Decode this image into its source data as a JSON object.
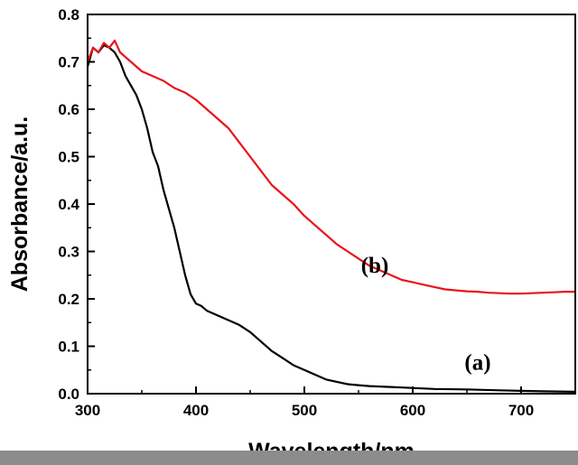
{
  "chart_data": {
    "type": "line",
    "xlabel": "Wavelength/nm",
    "ylabel": "Absorbance/a.u.",
    "xlim": [
      300,
      750
    ],
    "ylim": [
      0,
      0.8
    ],
    "xticks": [
      300,
      400,
      500,
      600,
      700
    ],
    "yticks": [
      0.0,
      0.1,
      0.2,
      0.3,
      0.4,
      0.5,
      0.6,
      0.7,
      0.8
    ],
    "xtick_labels": [
      "300",
      "400",
      "500",
      "600",
      "700"
    ],
    "ytick_labels": [
      "0.0",
      "0.1",
      "0.2",
      "0.3",
      "0.4",
      "0.5",
      "0.6",
      "0.7",
      "0.8"
    ],
    "grid": false,
    "annotations": [
      "(a)",
      "(b)"
    ],
    "series": [
      {
        "label": "(a)",
        "color": "#000000",
        "x": [
          300,
          305,
          310,
          315,
          320,
          325,
          330,
          335,
          340,
          345,
          350,
          355,
          360,
          365,
          370,
          375,
          380,
          385,
          390,
          395,
          400,
          405,
          410,
          420,
          430,
          440,
          450,
          460,
          470,
          480,
          490,
          500,
          510,
          520,
          530,
          540,
          550,
          560,
          580,
          600,
          620,
          650,
          680,
          700,
          720,
          750
        ],
        "y": [
          0.69,
          0.73,
          0.72,
          0.735,
          0.73,
          0.72,
          0.7,
          0.67,
          0.65,
          0.63,
          0.6,
          0.56,
          0.51,
          0.48,
          0.43,
          0.39,
          0.35,
          0.3,
          0.25,
          0.21,
          0.19,
          0.185,
          0.175,
          0.165,
          0.155,
          0.145,
          0.13,
          0.11,
          0.09,
          0.075,
          0.06,
          0.05,
          0.04,
          0.03,
          0.025,
          0.02,
          0.018,
          0.016,
          0.014,
          0.012,
          0.01,
          0.009,
          0.007,
          0.006,
          0.005,
          0.004
        ]
      },
      {
        "label": "(b)",
        "color": "#e8141b",
        "x": [
          300,
          305,
          310,
          315,
          320,
          325,
          330,
          340,
          350,
          360,
          370,
          380,
          390,
          400,
          410,
          420,
          430,
          440,
          450,
          460,
          470,
          480,
          490,
          500,
          510,
          520,
          530,
          540,
          550,
          560,
          570,
          580,
          590,
          600,
          610,
          620,
          630,
          640,
          650,
          660,
          670,
          680,
          690,
          700,
          710,
          720,
          730,
          740,
          750
        ],
        "y": [
          0.7,
          0.73,
          0.72,
          0.74,
          0.73,
          0.745,
          0.72,
          0.7,
          0.68,
          0.67,
          0.66,
          0.645,
          0.635,
          0.62,
          0.6,
          0.58,
          0.56,
          0.53,
          0.5,
          0.47,
          0.44,
          0.42,
          0.4,
          0.375,
          0.355,
          0.335,
          0.315,
          0.3,
          0.285,
          0.27,
          0.26,
          0.25,
          0.24,
          0.235,
          0.23,
          0.225,
          0.22,
          0.218,
          0.216,
          0.215,
          0.213,
          0.212,
          0.211,
          0.211,
          0.212,
          0.213,
          0.214,
          0.215,
          0.215
        ]
      }
    ]
  }
}
